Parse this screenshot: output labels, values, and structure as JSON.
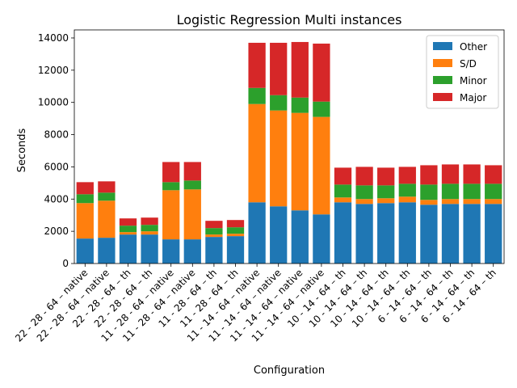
{
  "chart_data": {
    "type": "bar",
    "stacked": true,
    "title": "Logistic Regression Multi instances",
    "xlabel": "Configuration",
    "ylabel": "Seconds",
    "ylim": [
      0,
      14500
    ],
    "yticks": [
      0,
      2000,
      4000,
      6000,
      8000,
      10000,
      12000,
      14000
    ],
    "grid": false,
    "legend_position": "top-right",
    "categories": [
      "22 - 28 - 64 – native",
      "22 - 28 - 64 – native",
      "22 - 28 - 64 – th",
      "22 - 28 - 64 – th",
      "11 - 28 - 64 – native",
      "11 - 28 - 64 – native",
      "11 - 28 - 64 – th",
      "11 - 28 - 64 – th",
      "11 - 14 - 64 – native",
      "11 - 14 - 64 – native",
      "11 - 14 - 64 – native",
      "11 - 14 - 64 – native",
      "10 - 14 - 64 – th",
      "10 - 14 - 64 – th",
      "10 - 14 - 64 – th",
      "10 - 14 - 64 – th",
      "6 - 14 - 64 – th",
      "6 - 14 - 64 – th",
      "6 - 14 - 64 – th",
      "6 - 14 - 64 – th"
    ],
    "series": [
      {
        "name": "Other",
        "color": "#1f77b4",
        "values": [
          1550,
          1600,
          1800,
          1800,
          1500,
          1500,
          1650,
          1700,
          3800,
          3550,
          3300,
          3050,
          3800,
          3700,
          3750,
          3800,
          3650,
          3700,
          3700,
          3700
        ]
      },
      {
        "name": "S/D",
        "color": "#ff7f0e",
        "values": [
          2200,
          2300,
          150,
          200,
          3050,
          3100,
          150,
          150,
          6100,
          5950,
          6050,
          6050,
          300,
          300,
          300,
          350,
          300,
          300,
          300,
          300
        ]
      },
      {
        "name": "Minor",
        "color": "#2ca02c",
        "values": [
          550,
          500,
          400,
          400,
          500,
          550,
          400,
          400,
          1000,
          950,
          950,
          950,
          800,
          850,
          800,
          800,
          950,
          950,
          950,
          950
        ]
      },
      {
        "name": "Major",
        "color": "#d62728",
        "values": [
          750,
          700,
          450,
          450,
          1250,
          1150,
          450,
          450,
          2800,
          3250,
          3450,
          3600,
          1050,
          1150,
          1100,
          1050,
          1200,
          1200,
          1200,
          1150
        ]
      }
    ]
  }
}
